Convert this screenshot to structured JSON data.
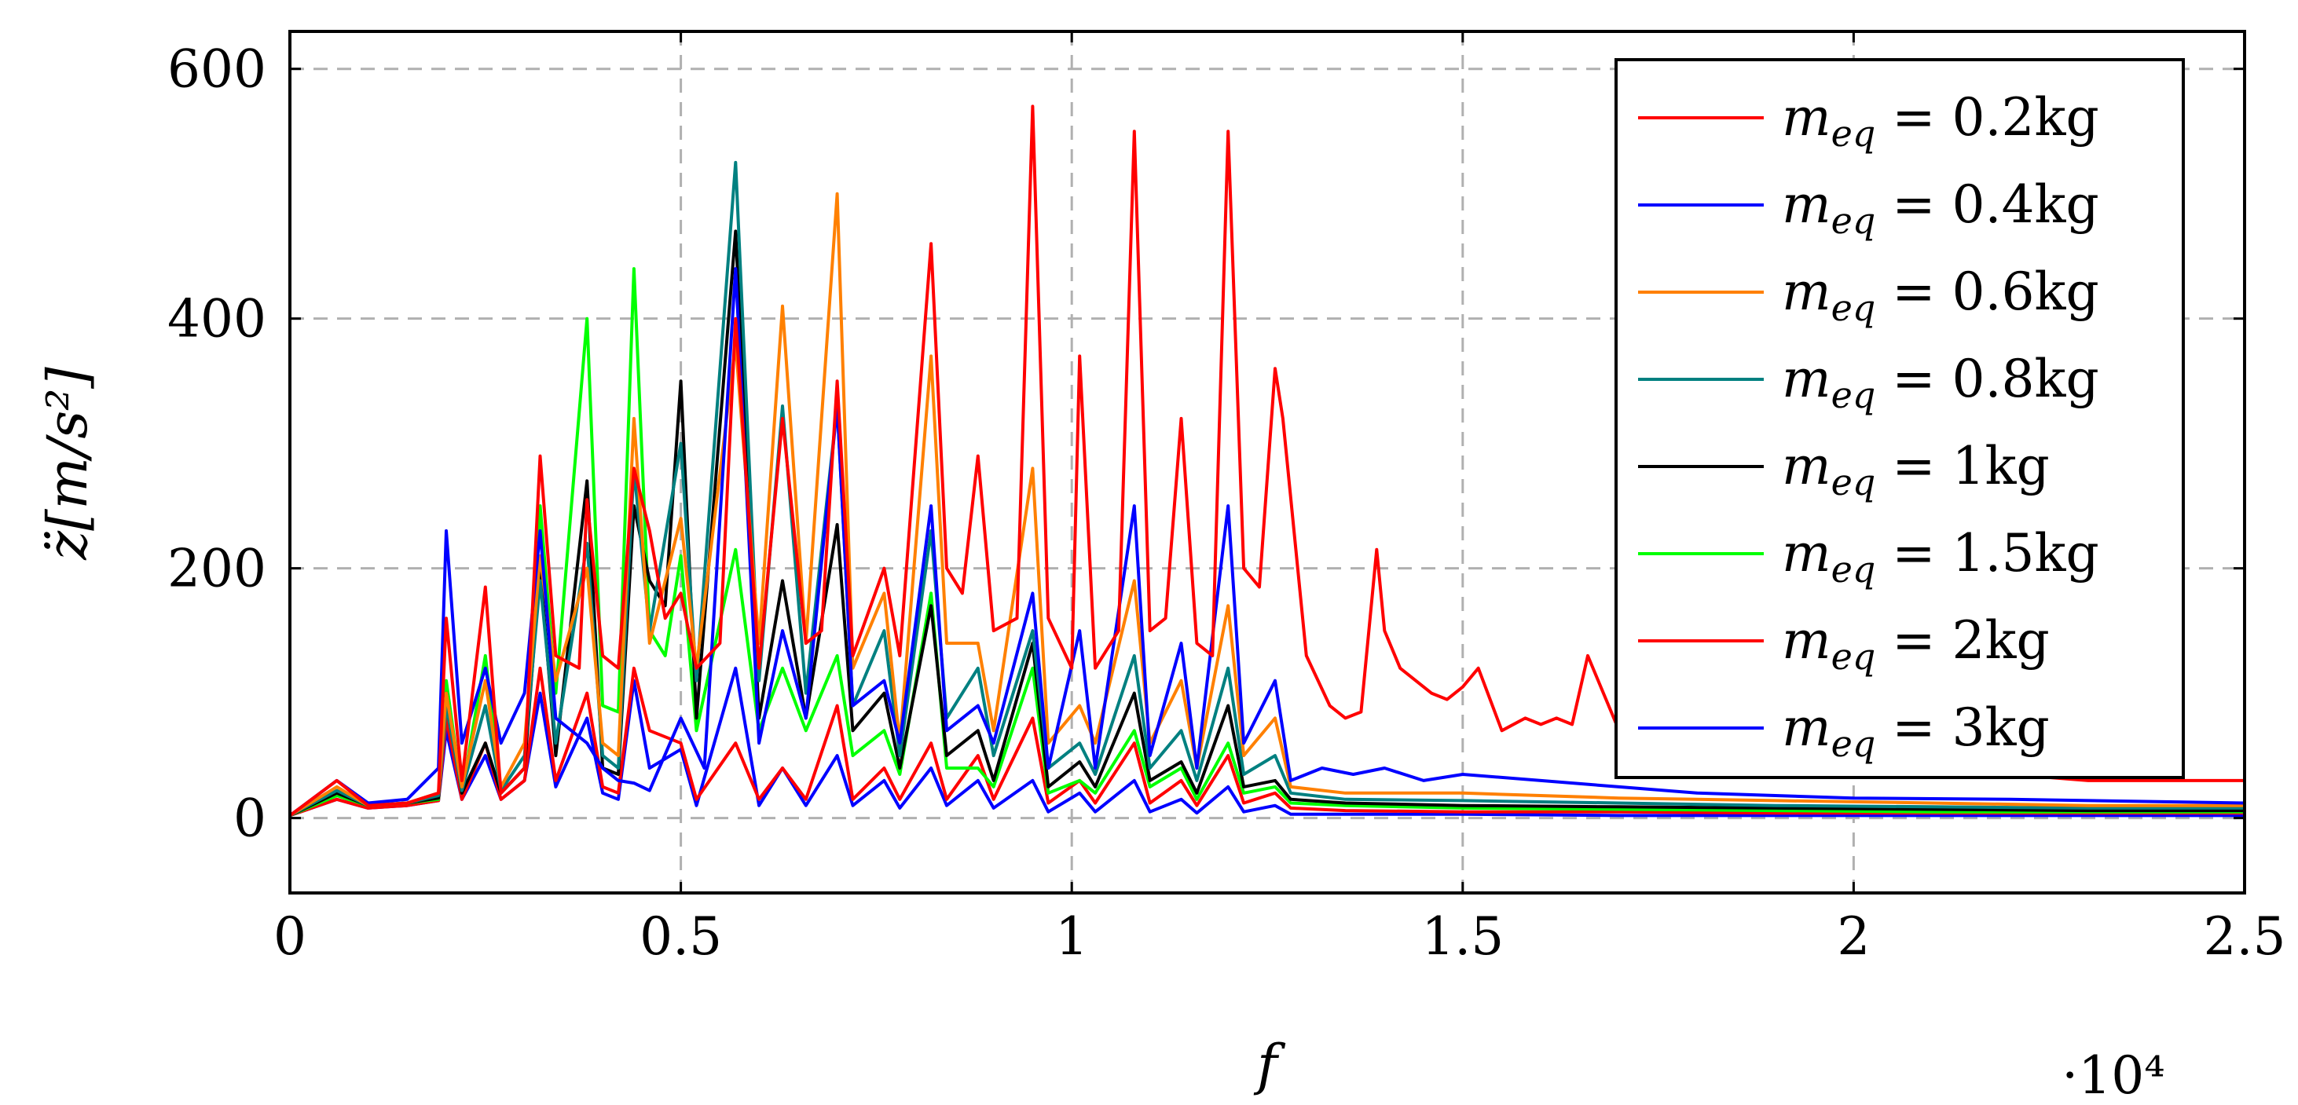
{
  "chart_data": {
    "type": "line",
    "xlabel": "f",
    "ylabel": "z̈[m/s²]",
    "x_multiplier": "·10⁴",
    "xlim": [
      0,
      2.5
    ],
    "ylim": [
      -60,
      630
    ],
    "grid": true,
    "legend_position": "top-right",
    "x_ticks": [
      {
        "value": 0,
        "label": "0"
      },
      {
        "value": 0.5,
        "label": "0.5"
      },
      {
        "value": 1,
        "label": "1"
      },
      {
        "value": 1.5,
        "label": "1.5"
      },
      {
        "value": 2,
        "label": "2"
      },
      {
        "value": 2.5,
        "label": "2.5"
      }
    ],
    "y_ticks": [
      {
        "value": 0,
        "label": "0"
      },
      {
        "value": 200,
        "label": "200"
      },
      {
        "value": 400,
        "label": "400"
      },
      {
        "value": 600,
        "label": "600"
      }
    ],
    "series": [
      {
        "name": "m_eq = 0.2kg",
        "legend_main": "m",
        "legend_sub": "eq",
        "legend_rest": " = 0.2kg",
        "color": "#ff0000",
        "x": [
          0,
          0.06,
          0.1,
          0.15,
          0.19,
          0.2,
          0.22,
          0.25,
          0.27,
          0.3,
          0.32,
          0.34,
          0.37,
          0.38,
          0.4,
          0.42,
          0.44,
          0.46,
          0.48,
          0.5,
          0.52,
          0.55,
          0.57,
          0.6,
          0.63,
          0.66,
          0.68,
          0.7,
          0.72,
          0.76,
          0.78,
          0.82,
          0.84,
          0.86,
          0.88,
          0.9,
          0.93,
          0.95,
          0.97,
          1.0,
          1.01,
          1.03,
          1.06,
          1.08,
          1.1,
          1.12,
          1.14,
          1.16,
          1.18,
          1.2,
          1.22,
          1.24,
          1.26,
          1.27,
          1.3,
          1.33,
          1.35,
          1.37,
          1.39,
          1.4,
          1.42,
          1.44,
          1.46,
          1.48,
          1.5,
          1.52,
          1.55,
          1.58,
          1.6,
          1.62,
          1.64,
          1.66,
          1.7,
          1.75,
          1.8,
          1.85,
          1.9,
          1.95,
          2.0,
          2.05,
          2.1,
          2.2,
          2.3,
          2.4,
          2.5
        ],
        "y": [
          2,
          30,
          10,
          12,
          20,
          160,
          30,
          185,
          20,
          40,
          290,
          130,
          120,
          255,
          130,
          120,
          280,
          230,
          160,
          180,
          120,
          140,
          400,
          120,
          320,
          140,
          150,
          350,
          130,
          200,
          130,
          460,
          200,
          180,
          290,
          150,
          160,
          570,
          160,
          120,
          370,
          120,
          150,
          550,
          150,
          160,
          320,
          140,
          130,
          550,
          200,
          185,
          360,
          320,
          130,
          90,
          80,
          85,
          215,
          150,
          120,
          110,
          100,
          95,
          105,
          120,
          70,
          80,
          75,
          80,
          75,
          130,
          70,
          60,
          50,
          50,
          40,
          45,
          40,
          40,
          35,
          35,
          30,
          30,
          30
        ]
      },
      {
        "name": "m_eq = 0.4kg",
        "legend_main": "m",
        "legend_sub": "eq",
        "legend_rest": " = 0.4kg",
        "color": "#0000ff",
        "x": [
          0,
          0.06,
          0.1,
          0.15,
          0.19,
          0.2,
          0.22,
          0.25,
          0.27,
          0.3,
          0.32,
          0.34,
          0.38,
          0.4,
          0.42,
          0.44,
          0.46,
          0.5,
          0.53,
          0.57,
          0.6,
          0.63,
          0.66,
          0.7,
          0.72,
          0.76,
          0.78,
          0.82,
          0.84,
          0.88,
          0.9,
          0.95,
          0.97,
          1.01,
          1.03,
          1.08,
          1.1,
          1.14,
          1.16,
          1.2,
          1.22,
          1.26,
          1.28,
          1.32,
          1.36,
          1.4,
          1.45,
          1.5,
          1.6,
          1.7,
          1.8,
          1.9,
          2.0,
          2.2,
          2.5
        ],
        "y": [
          2,
          30,
          12,
          15,
          40,
          230,
          60,
          120,
          60,
          100,
          230,
          80,
          60,
          40,
          30,
          28,
          22,
          80,
          40,
          440,
          60,
          150,
          80,
          330,
          90,
          110,
          60,
          250,
          70,
          90,
          60,
          180,
          40,
          150,
          40,
          250,
          50,
          140,
          40,
          250,
          60,
          110,
          30,
          40,
          35,
          40,
          30,
          35,
          30,
          25,
          20,
          18,
          16,
          15,
          12
        ]
      },
      {
        "name": "m_eq = 0.6kg",
        "legend_main": "m",
        "legend_sub": "eq",
        "legend_rest": " = 0.6kg",
        "color": "#ff8000",
        "x": [
          0,
          0.06,
          0.1,
          0.15,
          0.19,
          0.2,
          0.22,
          0.25,
          0.27,
          0.3,
          0.32,
          0.34,
          0.38,
          0.4,
          0.42,
          0.44,
          0.46,
          0.5,
          0.52,
          0.57,
          0.6,
          0.63,
          0.66,
          0.7,
          0.72,
          0.76,
          0.78,
          0.82,
          0.84,
          0.88,
          0.9,
          0.95,
          0.97,
          1.01,
          1.03,
          1.08,
          1.1,
          1.14,
          1.16,
          1.2,
          1.22,
          1.26,
          1.28,
          1.35,
          1.5,
          1.7,
          1.9,
          2.1,
          2.3,
          2.5
        ],
        "y": [
          2,
          25,
          10,
          12,
          20,
          100,
          25,
          110,
          25,
          60,
          210,
          110,
          200,
          60,
          50,
          320,
          140,
          240,
          120,
          380,
          140,
          410,
          140,
          500,
          120,
          180,
          60,
          370,
          140,
          140,
          70,
          280,
          60,
          90,
          60,
          190,
          60,
          110,
          40,
          170,
          50,
          80,
          25,
          20,
          20,
          16,
          14,
          12,
          10,
          10
        ]
      },
      {
        "name": "m_eq = 0.8kg",
        "legend_main": "m",
        "legend_sub": "eq",
        "legend_rest": " = 0.8kg",
        "color": "#008080",
        "x": [
          0,
          0.06,
          0.1,
          0.15,
          0.19,
          0.2,
          0.22,
          0.25,
          0.27,
          0.3,
          0.32,
          0.34,
          0.38,
          0.4,
          0.42,
          0.44,
          0.46,
          0.5,
          0.52,
          0.57,
          0.6,
          0.63,
          0.66,
          0.7,
          0.72,
          0.76,
          0.78,
          0.82,
          0.84,
          0.88,
          0.9,
          0.95,
          0.97,
          1.01,
          1.03,
          1.08,
          1.1,
          1.14,
          1.16,
          1.2,
          1.22,
          1.26,
          1.28,
          1.35,
          1.5,
          1.7,
          1.9,
          2.1,
          2.3,
          2.5
        ],
        "y": [
          2,
          22,
          10,
          12,
          18,
          90,
          22,
          90,
          22,
          50,
          190,
          60,
          220,
          50,
          40,
          280,
          150,
          300,
          110,
          525,
          110,
          330,
          100,
          330,
          90,
          150,
          50,
          230,
          80,
          120,
          50,
          150,
          40,
          60,
          35,
          130,
          40,
          70,
          30,
          120,
          35,
          50,
          20,
          15,
          14,
          12,
          10,
          9,
          8,
          8
        ]
      },
      {
        "name": "m_eq = 1kg",
        "legend_main": "m",
        "legend_sub": "eq",
        "legend_rest": " = 1kg",
        "color": "#000000",
        "x": [
          0,
          0.06,
          0.1,
          0.15,
          0.19,
          0.2,
          0.22,
          0.25,
          0.27,
          0.3,
          0.32,
          0.34,
          0.38,
          0.4,
          0.42,
          0.44,
          0.46,
          0.48,
          0.5,
          0.52,
          0.57,
          0.6,
          0.63,
          0.66,
          0.7,
          0.72,
          0.76,
          0.78,
          0.82,
          0.84,
          0.88,
          0.9,
          0.95,
          0.97,
          1.01,
          1.03,
          1.08,
          1.1,
          1.14,
          1.16,
          1.2,
          1.22,
          1.26,
          1.28,
          1.35,
          1.5,
          1.7,
          1.9,
          2.1,
          2.3,
          2.5
        ],
        "y": [
          2,
          20,
          10,
          12,
          16,
          100,
          20,
          60,
          20,
          40,
          200,
          50,
          270,
          40,
          35,
          250,
          190,
          170,
          350,
          80,
          470,
          80,
          190,
          80,
          235,
          70,
          100,
          40,
          170,
          50,
          70,
          30,
          140,
          25,
          45,
          25,
          100,
          30,
          45,
          20,
          90,
          25,
          30,
          15,
          12,
          10,
          9,
          8,
          7,
          6,
          6
        ]
      },
      {
        "name": "m_eq = 1.5kg",
        "legend_main": "m",
        "legend_sub": "eq",
        "legend_rest": " = 1.5kg",
        "color": "#00ff00",
        "x": [
          0,
          0.06,
          0.1,
          0.15,
          0.19,
          0.2,
          0.22,
          0.25,
          0.27,
          0.3,
          0.32,
          0.34,
          0.38,
          0.4,
          0.42,
          0.44,
          0.46,
          0.48,
          0.5,
          0.52,
          0.57,
          0.6,
          0.63,
          0.66,
          0.7,
          0.72,
          0.76,
          0.78,
          0.82,
          0.84,
          0.88,
          0.9,
          0.95,
          0.97,
          1.01,
          1.03,
          1.08,
          1.1,
          1.14,
          1.16,
          1.2,
          1.22,
          1.26,
          1.28,
          1.35,
          1.5,
          1.7,
          1.9,
          2.1,
          2.3,
          2.5
        ],
        "y": [
          2,
          18,
          10,
          12,
          15,
          110,
          20,
          130,
          20,
          40,
          250,
          100,
          400,
          90,
          85,
          440,
          150,
          130,
          210,
          70,
          215,
          70,
          120,
          70,
          130,
          50,
          70,
          35,
          180,
          40,
          40,
          25,
          120,
          20,
          30,
          20,
          70,
          25,
          40,
          15,
          60,
          20,
          25,
          12,
          10,
          8,
          7,
          6,
          5,
          5,
          5
        ]
      },
      {
        "name": "m_eq = 2kg",
        "legend_main": "m",
        "legend_sub": "eq",
        "legend_rest": " = 2kg",
        "color": "#ff0000",
        "x": [
          0,
          0.06,
          0.1,
          0.15,
          0.19,
          0.2,
          0.22,
          0.25,
          0.27,
          0.3,
          0.32,
          0.34,
          0.38,
          0.4,
          0.42,
          0.44,
          0.46,
          0.5,
          0.52,
          0.57,
          0.6,
          0.63,
          0.66,
          0.7,
          0.72,
          0.76,
          0.78,
          0.82,
          0.84,
          0.88,
          0.9,
          0.95,
          0.97,
          1.01,
          1.03,
          1.08,
          1.1,
          1.14,
          1.16,
          1.2,
          1.22,
          1.26,
          1.28,
          1.35,
          1.5,
          1.7,
          1.9,
          2.1,
          2.3,
          2.5
        ],
        "y": [
          2,
          15,
          8,
          10,
          14,
          80,
          15,
          60,
          15,
          30,
          120,
          30,
          100,
          25,
          20,
          120,
          70,
          60,
          15,
          60,
          15,
          40,
          15,
          90,
          15,
          40,
          15,
          60,
          15,
          50,
          15,
          80,
          12,
          30,
          12,
          60,
          12,
          30,
          10,
          50,
          12,
          20,
          8,
          6,
          5,
          5,
          4,
          4,
          4,
          4
        ]
      },
      {
        "name": "m_eq = 3kg",
        "legend_main": "m",
        "legend_sub": "eq",
        "legend_rest": " = 3kg",
        "color": "#0000ff",
        "x": [
          0,
          0.06,
          0.1,
          0.15,
          0.19,
          0.2,
          0.22,
          0.25,
          0.27,
          0.3,
          0.32,
          0.34,
          0.38,
          0.4,
          0.42,
          0.44,
          0.46,
          0.5,
          0.52,
          0.57,
          0.6,
          0.63,
          0.66,
          0.7,
          0.72,
          0.76,
          0.78,
          0.82,
          0.84,
          0.88,
          0.9,
          0.95,
          0.97,
          1.01,
          1.03,
          1.08,
          1.1,
          1.14,
          1.16,
          1.2,
          1.22,
          1.26,
          1.28,
          1.35,
          1.5,
          1.7,
          1.9,
          2.1,
          2.3,
          2.5
        ],
        "y": [
          2,
          15,
          8,
          10,
          14,
          70,
          15,
          50,
          15,
          30,
          100,
          25,
          80,
          20,
          15,
          110,
          40,
          55,
          10,
          120,
          10,
          40,
          10,
          50,
          10,
          30,
          8,
          40,
          10,
          30,
          8,
          30,
          5,
          20,
          5,
          30,
          5,
          15,
          4,
          25,
          5,
          10,
          3,
          3,
          3,
          2,
          2,
          2,
          2,
          2
        ]
      }
    ]
  }
}
